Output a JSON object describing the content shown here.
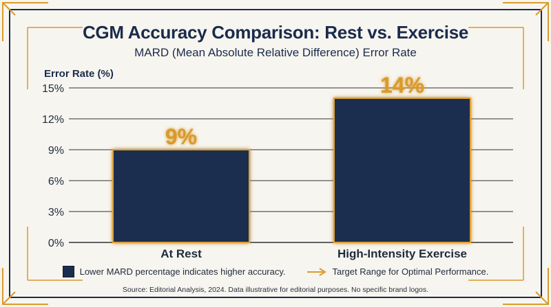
{
  "colors": {
    "bar_fill": "#1b2d4f",
    "bar_glow": "#e0a030",
    "accent_gold": "#d99a2b",
    "navy": "#1a2b4c",
    "grid": "#2b2f36",
    "background": "#f7f5ef"
  },
  "header": {
    "title": "CGM Accuracy Comparison: Rest vs. Exercise",
    "subtitle": "MARD (Mean Absolute Relative Difference) Error Rate"
  },
  "chart_data": {
    "type": "bar",
    "ylabel": "Error Rate (%)",
    "xlabel": "",
    "categories": [
      "At Rest",
      "High-Intensity Exercise"
    ],
    "values": [
      9,
      14
    ],
    "data_labels": [
      "9%",
      "14%"
    ],
    "ylim": [
      0,
      15
    ],
    "yticks": [
      0,
      3,
      6,
      9,
      12,
      15
    ],
    "ytick_labels": [
      "0%",
      "3%",
      "6%",
      "9%",
      "12%",
      "15%"
    ],
    "grid": true
  },
  "legend": {
    "box_label": "Lower MARD percentage indicates higher accuracy.",
    "arrow_label": "Target Range for Optimal Performance.",
    "arrow_icon": "arrow-right-icon"
  },
  "footer": {
    "source": "Source: Editorial Analysis, 2024. Data illustrative for editorial purposes. No specific brand logos."
  }
}
